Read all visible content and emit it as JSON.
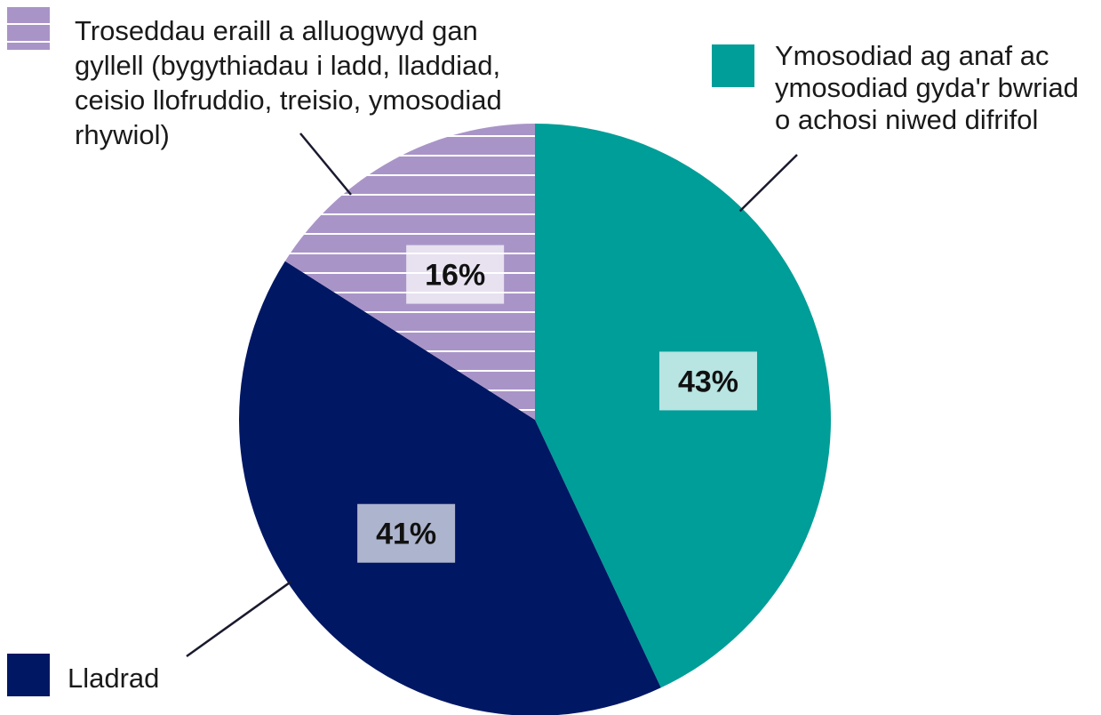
{
  "chart_data": {
    "type": "pie",
    "slices": [
      {
        "label_lines": [
          "Ymosodiad ag anaf ac",
          "ymosodiad gyda'r bwriad",
          "o achosi niwed difrifol"
        ],
        "value": 43,
        "value_label": "43%",
        "color": "#009e98",
        "pattern": "solid"
      },
      {
        "label_lines": [
          "Lladrad"
        ],
        "value": 41,
        "value_label": "41%",
        "color": "#001764",
        "pattern": "solid"
      },
      {
        "label_lines": [
          "Troseddau eraill a alluogwyd gan",
          "gyllell (bygythiadau i ladd, lladdiad,",
          "ceisio llofruddio, treisio, ymosodiad",
          "rhywiol)"
        ],
        "value": 16,
        "value_label": "16%",
        "color": "#a994c8",
        "pattern": "horizontal-stripes"
      }
    ],
    "start_angle": "12 o'clock",
    "direction": "clockwise"
  }
}
